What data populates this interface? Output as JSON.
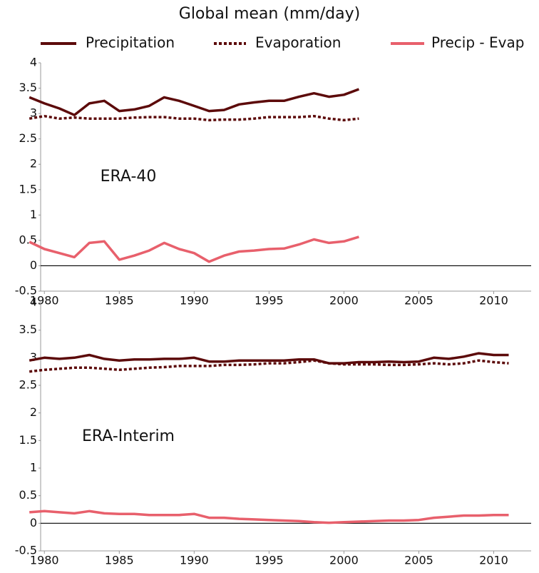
{
  "title": "Global mean (mm/day)",
  "chart_data": [
    {
      "type": "line",
      "annotation": "ERA-40",
      "x": [
        1979,
        1980,
        1981,
        1982,
        1983,
        1984,
        1985,
        1986,
        1987,
        1988,
        1989,
        1990,
        1991,
        1992,
        1993,
        1994,
        1995,
        1996,
        1997,
        1998,
        1999,
        2000,
        2001
      ],
      "series": [
        {
          "name": "Precipitation",
          "color": "#5c0a0a",
          "line_style": "solid",
          "values": [
            3.32,
            3.2,
            3.1,
            2.97,
            3.2,
            3.25,
            3.05,
            3.08,
            3.15,
            3.32,
            3.25,
            3.15,
            3.05,
            3.07,
            3.18,
            3.22,
            3.25,
            3.25,
            3.33,
            3.4,
            3.33,
            3.37,
            3.48
          ]
        },
        {
          "name": "Evaporation",
          "color": "#5c0a0a",
          "line_style": "dotted",
          "values": [
            2.9,
            2.95,
            2.9,
            2.92,
            2.9,
            2.9,
            2.9,
            2.92,
            2.93,
            2.93,
            2.9,
            2.9,
            2.87,
            2.88,
            2.88,
            2.9,
            2.93,
            2.93,
            2.93,
            2.95,
            2.9,
            2.87,
            2.9
          ]
        },
        {
          "name": "Precip - Evap",
          "color": "#e8606c",
          "line_style": "solid",
          "values": [
            0.47,
            0.33,
            0.25,
            0.17,
            0.45,
            0.48,
            0.12,
            0.2,
            0.3,
            0.45,
            0.33,
            0.25,
            0.08,
            0.2,
            0.28,
            0.3,
            0.33,
            0.34,
            0.42,
            0.52,
            0.45,
            0.48,
            0.57
          ]
        }
      ],
      "xlim": [
        1979.75,
        2012.5
      ],
      "xticks": [
        1980,
        1985,
        1990,
        1995,
        2000,
        2005,
        2010
      ],
      "ylim": [
        -0.5,
        4
      ],
      "yticks": [
        -0.5,
        0,
        0.5,
        1,
        1.5,
        2,
        2.5,
        3,
        3.5,
        4
      ]
    },
    {
      "type": "line",
      "annotation": "ERA-Interim",
      "x": [
        1979,
        1980,
        1981,
        1982,
        1983,
        1984,
        1985,
        1986,
        1987,
        1988,
        1989,
        1990,
        1991,
        1992,
        1993,
        1994,
        1995,
        1996,
        1997,
        1998,
        1999,
        2000,
        2001,
        2002,
        2003,
        2004,
        2005,
        2006,
        2007,
        2008,
        2009,
        2010,
        2011
      ],
      "series": [
        {
          "color": "#5c0a0a",
          "line_style": "solid",
          "values": [
            2.95,
            3.0,
            2.98,
            3.0,
            3.05,
            2.98,
            2.95,
            2.97,
            2.97,
            2.98,
            2.98,
            3.0,
            2.93,
            2.93,
            2.95,
            2.95,
            2.95,
            2.95,
            2.97,
            2.97,
            2.9,
            2.9,
            2.92,
            2.92,
            2.93,
            2.92,
            2.93,
            3.0,
            2.98,
            3.02,
            3.08,
            3.05,
            3.05
          ]
        },
        {
          "color": "#5c0a0a",
          "line_style": "dotted",
          "values": [
            2.75,
            2.78,
            2.8,
            2.82,
            2.82,
            2.8,
            2.78,
            2.8,
            2.82,
            2.83,
            2.85,
            2.85,
            2.85,
            2.87,
            2.87,
            2.88,
            2.9,
            2.9,
            2.92,
            2.95,
            2.9,
            2.88,
            2.88,
            2.88,
            2.87,
            2.87,
            2.88,
            2.9,
            2.88,
            2.9,
            2.95,
            2.92,
            2.9
          ]
        },
        {
          "color": "#e8606c",
          "line_style": "solid",
          "values": [
            0.2,
            0.22,
            0.2,
            0.18,
            0.22,
            0.18,
            0.17,
            0.17,
            0.15,
            0.15,
            0.15,
            0.17,
            0.1,
            0.1,
            0.08,
            0.07,
            0.06,
            0.05,
            0.04,
            0.02,
            0.01,
            0.02,
            0.03,
            0.04,
            0.05,
            0.05,
            0.06,
            0.1,
            0.12,
            0.14,
            0.14,
            0.15,
            0.15
          ]
        }
      ],
      "xlim": [
        1979.75,
        2012.5
      ],
      "xticks": [
        1980,
        1985,
        1990,
        1995,
        2000,
        2005,
        2010
      ],
      "ylim": [
        -0.5,
        4
      ],
      "yticks": [
        -0.5,
        0,
        0.5,
        1,
        1.5,
        2,
        2.5,
        3,
        3.5,
        4
      ]
    }
  ]
}
